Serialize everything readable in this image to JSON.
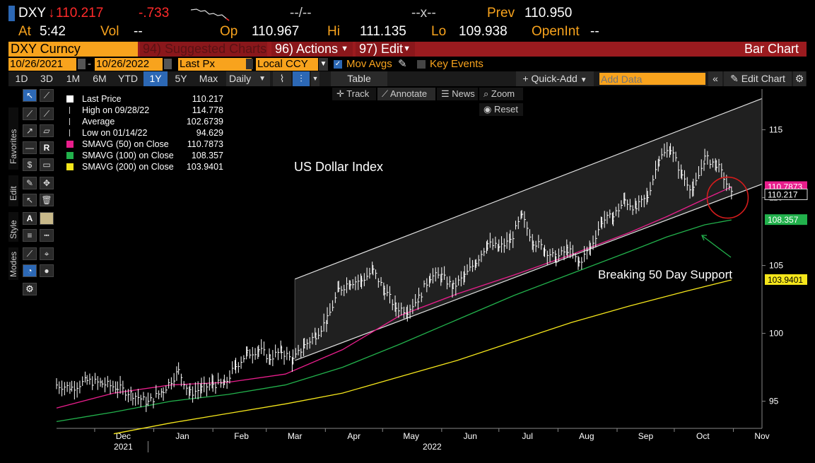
{
  "header": {
    "ticker": "DXY",
    "last": "110.217",
    "change": "-.733",
    "bid_ask": "--/--",
    "size": "--x--",
    "prev_label": "Prev",
    "prev": "110.950",
    "at_label": "At",
    "time": "5:42",
    "vol_label": "Vol",
    "vol": "--",
    "op_label": "Op",
    "open": "110.967",
    "hi_label": "Hi",
    "high": "111.135",
    "lo_label": "Lo",
    "low": "109.938",
    "oi_label": "OpenInt",
    "oi": "--"
  },
  "function_bar": {
    "security": "DXY Curncy",
    "suggested": "94) Suggested Charts",
    "actions": "96) Actions",
    "edit": "97) Edit",
    "title": "Bar Chart"
  },
  "options": {
    "start_date": "10/26/2021",
    "end_date": "10/26/2022",
    "price_field": "Last Px",
    "currency": "Local CCY",
    "mov_avgs": "Mov Avgs",
    "key_events": "Key Events"
  },
  "range_bar": {
    "ranges": [
      "1D",
      "3D",
      "1M",
      "6M",
      "YTD",
      "1Y",
      "5Y",
      "Max"
    ],
    "active": "1Y",
    "period": "Daily",
    "table": "Table",
    "quick_add": "+ Quick-Add",
    "add_data_placeholder": "Add Data",
    "edit_chart": "Edit Chart"
  },
  "chart_nav": {
    "track": "Track",
    "annotate": "Annotate",
    "news": "News",
    "zoom": "Zoom",
    "reset": "Reset"
  },
  "side_tabs": [
    "Favorites",
    "Edit",
    "Style",
    "Modes"
  ],
  "legend": [
    {
      "label": "Last Price",
      "value": "110.217",
      "color": "#ffffff"
    },
    {
      "label": "High on 09/28/22",
      "value": "114.778",
      "color": "#cccccc"
    },
    {
      "label": "Average",
      "value": "102.6739",
      "color": "#cccccc"
    },
    {
      "label": "Low on 01/14/22",
      "value": "94.629",
      "color": "#cccccc"
    },
    {
      "label": "SMAVG (50)  on Close",
      "value": "110.7873",
      "color": "#e91e8c"
    },
    {
      "label": "SMAVG (100)  on Close",
      "value": "108.357",
      "color": "#22b14c"
    },
    {
      "label": "SMAVG (200)  on Close",
      "value": "103.9401",
      "color": "#f5e61b"
    }
  ],
  "annotations": {
    "title": "US Dollar Index",
    "note": "Breaking 50 Day Support"
  },
  "chart_data": {
    "type": "line",
    "title": "US Dollar Index",
    "ylim": [
      93,
      118
    ],
    "y_ticks": [
      95,
      100,
      105,
      110,
      115
    ],
    "x_ticks": [
      "Dec",
      "Jan",
      "Feb",
      "Mar",
      "Apr",
      "May",
      "Jun",
      "Jul",
      "Aug",
      "Sep",
      "Oct",
      "Nov"
    ],
    "x_years": [
      "2021",
      "2022"
    ],
    "grid": false,
    "legend_position": "top-left",
    "x_range": [
      0,
      360
    ],
    "x_tick_positions": [
      35,
      66,
      97,
      125,
      156,
      186,
      217,
      247,
      278,
      309,
      339,
      370
    ],
    "series": [
      {
        "name": "Last Price",
        "color": "#ffffff",
        "x": [
          0,
          8,
          16,
          24,
          32,
          40,
          48,
          56,
          64,
          70,
          76,
          82,
          88,
          94,
          100,
          106,
          112,
          118,
          124,
          130,
          136,
          142,
          148,
          154,
          160,
          166,
          172,
          178,
          184,
          190,
          196,
          202,
          208,
          214,
          220,
          226,
          232,
          238,
          244,
          250,
          256,
          262,
          268,
          274,
          280,
          286,
          292,
          298,
          304,
          310,
          316,
          322,
          328,
          334,
          340,
          346,
          350,
          354
        ],
        "values": [
          96.2,
          96.0,
          96.5,
          96.3,
          96.0,
          95.5,
          94.9,
          95.8,
          97.2,
          95.6,
          95.9,
          96.3,
          96.2,
          97.6,
          98.5,
          98.8,
          98.2,
          98.7,
          98.0,
          99.1,
          99.9,
          101.0,
          103.2,
          103.8,
          103.9,
          104.6,
          103.2,
          101.9,
          101.7,
          102.6,
          104.2,
          104.2,
          103.4,
          104.2,
          105.3,
          106.6,
          106.3,
          106.8,
          108.6,
          106.8,
          106.2,
          105.5,
          106.2,
          105.2,
          106.3,
          108.3,
          108.6,
          109.8,
          109.2,
          110.1,
          112.9,
          113.6,
          111.7,
          110.5,
          112.9,
          112.5,
          111.5,
          110.2
        ]
      },
      {
        "name": "SMAVG (50)  on Close",
        "color": "#e91e8c",
        "x": [
          0,
          30,
          60,
          90,
          120,
          150,
          180,
          210,
          240,
          270,
          300,
          320,
          340,
          354
        ],
        "values": [
          94.5,
          95.6,
          96.2,
          96.4,
          97.0,
          98.8,
          101.3,
          102.9,
          104.3,
          105.8,
          107.4,
          108.6,
          109.9,
          110.79
        ]
      },
      {
        "name": "SMAVG (100)  on Close",
        "color": "#22b14c",
        "x": [
          0,
          30,
          60,
          90,
          120,
          150,
          180,
          210,
          240,
          270,
          300,
          320,
          340,
          354
        ],
        "values": [
          93.5,
          94.2,
          95.0,
          95.5,
          96.2,
          97.5,
          99.2,
          101.0,
          102.8,
          104.4,
          106.0,
          107.1,
          108.0,
          108.36
        ]
      },
      {
        "name": "SMAVG (200)  on Close",
        "color": "#f5e61b",
        "x": [
          30,
          60,
          90,
          120,
          150,
          180,
          210,
          240,
          270,
          300,
          330,
          354
        ],
        "values": [
          92.6,
          93.4,
          94.1,
          94.8,
          95.6,
          96.8,
          98.0,
          99.4,
          100.8,
          102.0,
          103.1,
          103.94
        ]
      }
    ],
    "channel": {
      "x": [
        125,
        370
      ],
      "upper": [
        104.0,
        117.3
      ],
      "lower": [
        98.0,
        111.0
      ]
    },
    "y_labels_right": [
      {
        "text": "110.7873",
        "value": 110.7873,
        "color": "#e91e8c"
      },
      {
        "text": "110.217",
        "value": 110.217,
        "color": "#ffffff"
      },
      {
        "text": "108.357",
        "value": 108.357,
        "color": "#22b14c"
      },
      {
        "text": "103.9401",
        "value": 103.9401,
        "color": "#f5e61b"
      }
    ]
  }
}
